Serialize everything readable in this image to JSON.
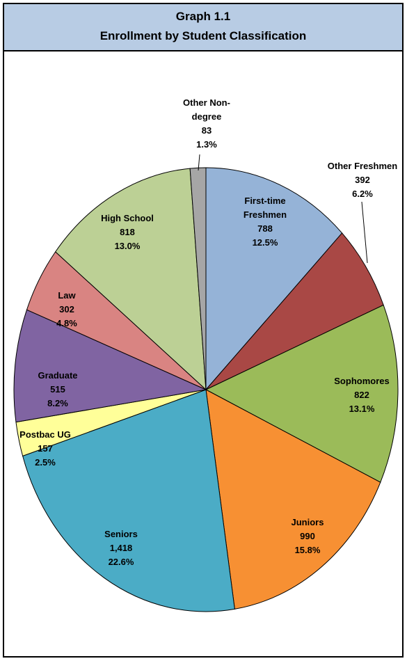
{
  "header": {
    "graph_number": "Graph 1.1",
    "title": "Enrollment by Student Classification"
  },
  "chart_data": {
    "type": "pie",
    "title": "Enrollment by Student Classification",
    "slices": [
      {
        "label": [
          "First-time",
          "Freshmen"
        ],
        "value": 788,
        "value_text": "788",
        "percent": "12.5%",
        "color": "#95b3d7"
      },
      {
        "label": [
          "Other Freshmen"
        ],
        "value": 392,
        "value_text": "392",
        "percent": "6.2%",
        "color": "#a94845"
      },
      {
        "label": [
          "Sophomores"
        ],
        "value": 822,
        "value_text": "822",
        "percent": "13.1%",
        "color": "#9bbb59"
      },
      {
        "label": [
          "Juniors"
        ],
        "value": 990,
        "value_text": "990",
        "percent": "15.8%",
        "color": "#f79033"
      },
      {
        "label": [
          "Seniors"
        ],
        "value": 1418,
        "value_text": "1,418",
        "percent": "22.6%",
        "color": "#4bacc6"
      },
      {
        "label": [
          "Postbac UG"
        ],
        "value": 157,
        "value_text": "157",
        "percent": "2.5%",
        "color": "#ffff99"
      },
      {
        "label": [
          "Graduate"
        ],
        "value": 515,
        "value_text": "515",
        "percent": "8.2%",
        "color": "#8064a2"
      },
      {
        "label": [
          "Law"
        ],
        "value": 302,
        "value_text": "302",
        "percent": "4.8%",
        "color": "#d98482"
      },
      {
        "label": [
          "High School"
        ],
        "value": 818,
        "value_text": "818",
        "percent": "13.0%",
        "color": "#bcd095"
      },
      {
        "label": [
          "Other Non-",
          "degree"
        ],
        "value": 83,
        "value_text": "83",
        "percent": "1.3%",
        "color": "#a6a6a6"
      }
    ]
  }
}
